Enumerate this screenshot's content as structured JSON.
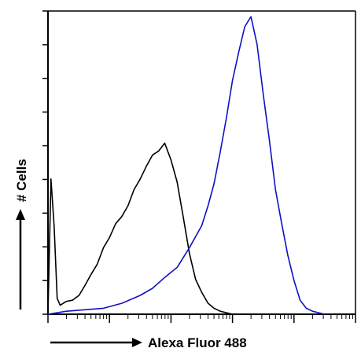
{
  "chart_data": {
    "type": "line",
    "title": "",
    "xlabel": "Alexa Fluor 488",
    "ylabel": "# Cells",
    "xscale": "log",
    "xlim": [
      1,
      100000
    ],
    "ylim": [
      0,
      100
    ],
    "grid": false,
    "legend": "none",
    "series": [
      {
        "color": "#000000",
        "x": [
          1,
          1.12,
          1.26,
          1.41,
          1.58,
          2.0,
          2.5,
          3.2,
          4.0,
          5.0,
          6.3,
          8.0,
          10,
          12.6,
          15.8,
          20,
          25,
          31.6,
          40,
          50,
          63,
          79,
          100,
          126,
          158,
          200,
          251,
          316,
          400,
          500,
          631,
          800,
          1000
        ],
        "values": [
          0,
          45,
          30,
          5,
          3,
          4,
          5,
          6,
          10,
          13,
          17,
          22,
          26,
          30,
          33,
          36,
          42,
          45,
          50,
          53,
          55,
          57,
          52,
          44,
          33,
          20,
          12,
          7,
          4,
          2,
          1,
          0.5,
          0
        ]
      },
      {
        "color": "#1010c8",
        "x": [
          1,
          2,
          4,
          8,
          16,
          31.6,
          50,
          79,
          126,
          200,
          316,
          400,
          500,
          631,
          794,
          1000,
          1259,
          1585,
          1995,
          2512,
          3162,
          3981,
          5012,
          6310,
          7943,
          10000,
          12589,
          15849,
          19953,
          25119,
          31623
        ],
        "values": [
          0,
          1,
          1.5,
          2,
          4,
          6,
          9,
          12,
          16,
          22,
          30,
          36,
          44,
          54,
          66,
          78,
          88,
          96,
          100,
          90,
          74,
          58,
          42,
          30,
          20,
          11,
          5,
          2,
          1,
          0.5,
          0
        ]
      }
    ]
  }
}
